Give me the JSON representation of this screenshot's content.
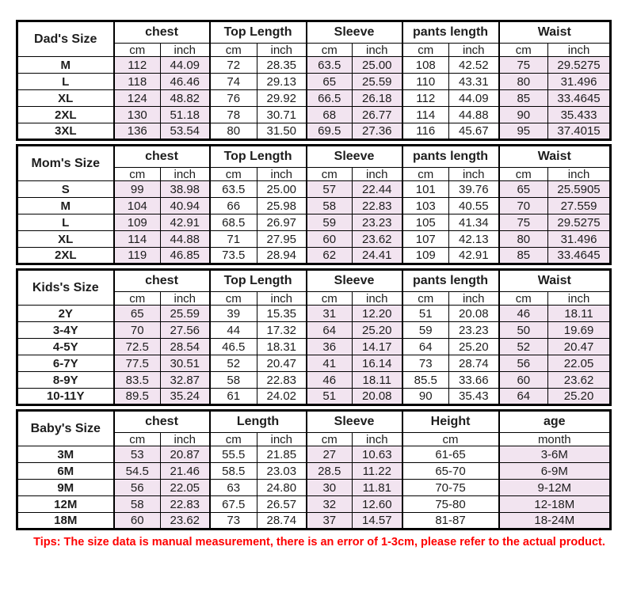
{
  "colors": {
    "shaded_cell": "#f2e4f0",
    "border": "#000000",
    "text": "#1d1d1d",
    "tip_text": "#fe0000",
    "background": "#ffffff"
  },
  "tip": "Tips: The size data is manual measurement, there is an error of 1-3cm, please refer to the actual product.",
  "chart_data": [
    {
      "type": "table",
      "id": "dads",
      "title": "Dad's Size",
      "groups": [
        {
          "label": "chest",
          "units": [
            "cm",
            "inch"
          ],
          "shaded": true
        },
        {
          "label": "Top Length",
          "units": [
            "cm",
            "inch"
          ],
          "shaded": false
        },
        {
          "label": "Sleeve",
          "units": [
            "cm",
            "inch"
          ],
          "shaded": true
        },
        {
          "label": "pants length",
          "units": [
            "cm",
            "inch"
          ],
          "shaded": false
        },
        {
          "label": "Waist",
          "units": [
            "cm",
            "inch"
          ],
          "shaded": true
        }
      ],
      "rows": [
        {
          "size": "M",
          "values": [
            "112",
            "44.09",
            "72",
            "28.35",
            "63.5",
            "25.00",
            "108",
            "42.52",
            "75",
            "29.5275"
          ]
        },
        {
          "size": "L",
          "values": [
            "118",
            "46.46",
            "74",
            "29.13",
            "65",
            "25.59",
            "110",
            "43.31",
            "80",
            "31.496"
          ]
        },
        {
          "size": "XL",
          "values": [
            "124",
            "48.82",
            "76",
            "29.92",
            "66.5",
            "26.18",
            "112",
            "44.09",
            "85",
            "33.4645"
          ]
        },
        {
          "size": "2XL",
          "values": [
            "130",
            "51.18",
            "78",
            "30.71",
            "68",
            "26.77",
            "114",
            "44.88",
            "90",
            "35.433"
          ]
        },
        {
          "size": "3XL",
          "values": [
            "136",
            "53.54",
            "80",
            "31.50",
            "69.5",
            "27.36",
            "116",
            "45.67",
            "95",
            "37.4015"
          ]
        }
      ]
    },
    {
      "type": "table",
      "id": "moms",
      "title": "Mom's Size",
      "groups": [
        {
          "label": "chest",
          "units": [
            "cm",
            "inch"
          ],
          "shaded": true
        },
        {
          "label": "Top Length",
          "units": [
            "cm",
            "inch"
          ],
          "shaded": false
        },
        {
          "label": "Sleeve",
          "units": [
            "cm",
            "inch"
          ],
          "shaded": true
        },
        {
          "label": "pants length",
          "units": [
            "cm",
            "inch"
          ],
          "shaded": false
        },
        {
          "label": "Waist",
          "units": [
            "cm",
            "inch"
          ],
          "shaded": true
        }
      ],
      "rows": [
        {
          "size": "S",
          "values": [
            "99",
            "38.98",
            "63.5",
            "25.00",
            "57",
            "22.44",
            "101",
            "39.76",
            "65",
            "25.5905"
          ]
        },
        {
          "size": "M",
          "values": [
            "104",
            "40.94",
            "66",
            "25.98",
            "58",
            "22.83",
            "103",
            "40.55",
            "70",
            "27.559"
          ]
        },
        {
          "size": "L",
          "values": [
            "109",
            "42.91",
            "68.5",
            "26.97",
            "59",
            "23.23",
            "105",
            "41.34",
            "75",
            "29.5275"
          ]
        },
        {
          "size": "XL",
          "values": [
            "114",
            "44.88",
            "71",
            "27.95",
            "60",
            "23.62",
            "107",
            "42.13",
            "80",
            "31.496"
          ]
        },
        {
          "size": "2XL",
          "values": [
            "119",
            "46.85",
            "73.5",
            "28.94",
            "62",
            "24.41",
            "109",
            "42.91",
            "85",
            "33.4645"
          ]
        }
      ]
    },
    {
      "type": "table",
      "id": "kids",
      "title": "Kids's Size",
      "groups": [
        {
          "label": "chest",
          "units": [
            "cm",
            "inch"
          ],
          "shaded": true
        },
        {
          "label": "Top Length",
          "units": [
            "cm",
            "inch"
          ],
          "shaded": false
        },
        {
          "label": "Sleeve",
          "units": [
            "cm",
            "inch"
          ],
          "shaded": true
        },
        {
          "label": "pants length",
          "units": [
            "cm",
            "inch"
          ],
          "shaded": false
        },
        {
          "label": "Waist",
          "units": [
            "cm",
            "inch"
          ],
          "shaded": true
        }
      ],
      "rows": [
        {
          "size": "2Y",
          "values": [
            "65",
            "25.59",
            "39",
            "15.35",
            "31",
            "12.20",
            "51",
            "20.08",
            "46",
            "18.11"
          ]
        },
        {
          "size": "3-4Y",
          "values": [
            "70",
            "27.56",
            "44",
            "17.32",
            "64",
            "25.20",
            "59",
            "23.23",
            "50",
            "19.69"
          ]
        },
        {
          "size": "4-5Y",
          "values": [
            "72.5",
            "28.54",
            "46.5",
            "18.31",
            "36",
            "14.17",
            "64",
            "25.20",
            "52",
            "20.47"
          ]
        },
        {
          "size": "6-7Y",
          "values": [
            "77.5",
            "30.51",
            "52",
            "20.47",
            "41",
            "16.14",
            "73",
            "28.74",
            "56",
            "22.05"
          ]
        },
        {
          "size": "8-9Y",
          "values": [
            "83.5",
            "32.87",
            "58",
            "22.83",
            "46",
            "18.11",
            "85.5",
            "33.66",
            "60",
            "23.62"
          ]
        },
        {
          "size": "10-11Y",
          "values": [
            "89.5",
            "35.24",
            "61",
            "24.02",
            "51",
            "20.08",
            "90",
            "35.43",
            "64",
            "25.20"
          ]
        }
      ]
    },
    {
      "type": "table",
      "id": "babys",
      "title": "Baby's Size",
      "groups": [
        {
          "label": "chest",
          "units": [
            "cm",
            "inch"
          ],
          "shaded": true
        },
        {
          "label": "Length",
          "units": [
            "cm",
            "inch"
          ],
          "shaded": false
        },
        {
          "label": "Sleeve",
          "units": [
            "cm",
            "inch"
          ],
          "shaded": true
        },
        {
          "label": "Height",
          "units": [
            "cm"
          ],
          "unit_span": 2,
          "shaded": false
        },
        {
          "label": "age",
          "units": [
            "month"
          ],
          "unit_span": 2,
          "shaded": true
        }
      ],
      "rows": [
        {
          "size": "3M",
          "values": [
            "53",
            "20.87",
            "55.5",
            "21.85",
            "27",
            "10.63",
            "61-65",
            "3-6M"
          ]
        },
        {
          "size": "6M",
          "values": [
            "54.5",
            "21.46",
            "58.5",
            "23.03",
            "28.5",
            "11.22",
            "65-70",
            "6-9M"
          ]
        },
        {
          "size": "9M",
          "values": [
            "56",
            "22.05",
            "63",
            "24.80",
            "30",
            "11.81",
            "70-75",
            "9-12M"
          ]
        },
        {
          "size": "12M",
          "values": [
            "58",
            "22.83",
            "67.5",
            "26.57",
            "32",
            "12.60",
            "75-80",
            "12-18M"
          ]
        },
        {
          "size": "18M",
          "values": [
            "60",
            "23.62",
            "73",
            "28.74",
            "37",
            "14.57",
            "81-87",
            "18-24M"
          ]
        }
      ]
    }
  ]
}
